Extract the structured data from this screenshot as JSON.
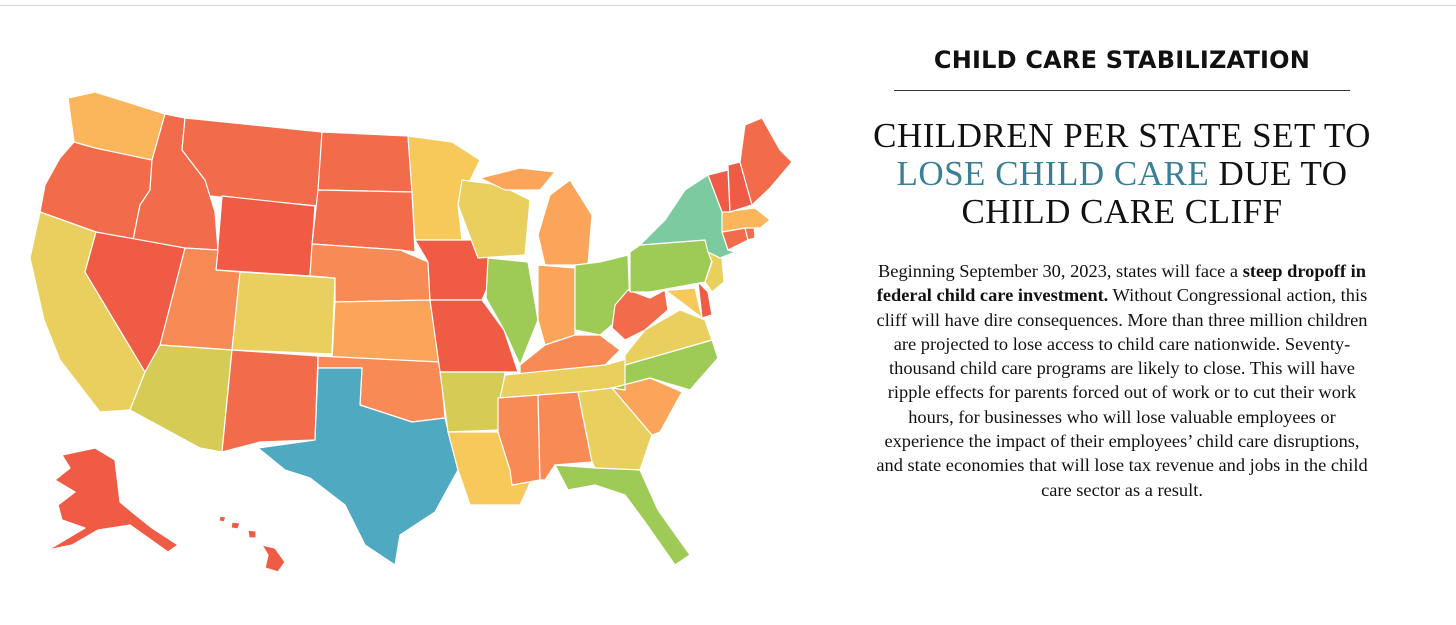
{
  "header": {
    "section_title": "CHILD CARE STABILIZATION",
    "headline_part1": "CHILDREN PER STATE SET TO",
    "headline_accent": "LOSE CHILD CARE",
    "headline_part2": "DUE TO CHILD CARE CLIFF"
  },
  "body": {
    "text_1": "Beginning September 30, 2023, states will face a ",
    "text_bold": "steep dropoff in federal child care investment.",
    "text_2": " Without Congressional action, this cliff will have dire consequences. More than three million children are projected to lose access to child care nationwide. Seventy-thousand child care programs are likely to close. This will have ripple effects for parents forced out of work or to cut their work hours, for businesses who will lose valuable employees or experience the impact of their employees’ child care disruptions, and state economies that will lose tax revenue and jobs in the child care sector as a result."
  },
  "colors": {
    "accent": "#3a7f96",
    "red": "#ef5b45",
    "red_orange": "#f26b4a",
    "orange": "#f88b55",
    "light_orange": "#fba55a",
    "yellow_orange": "#fbbd5b",
    "yellow": "#f7c95b",
    "khaki": "#e9cf5d",
    "olive": "#d6cc55",
    "yellow_green": "#b7cc55",
    "green": "#9dcb55",
    "teal_green": "#7ccba0",
    "blue": "#4fa9c1"
  },
  "map": {
    "states": [
      {
        "abbr": "WA",
        "color": "#fbb55a"
      },
      {
        "abbr": "OR",
        "color": "#f26b4a"
      },
      {
        "abbr": "CA",
        "color": "#e9cf5d"
      },
      {
        "abbr": "ID",
        "color": "#f26b4a"
      },
      {
        "abbr": "NV",
        "color": "#ef5b45"
      },
      {
        "abbr": "MT",
        "color": "#f26b4a"
      },
      {
        "abbr": "WY",
        "color": "#ef5b45"
      },
      {
        "abbr": "UT",
        "color": "#f88b55"
      },
      {
        "abbr": "AZ",
        "color": "#d6cc55"
      },
      {
        "abbr": "CO",
        "color": "#e9cf5d"
      },
      {
        "abbr": "NM",
        "color": "#f26b4a"
      },
      {
        "abbr": "ND",
        "color": "#f26b4a"
      },
      {
        "abbr": "SD",
        "color": "#f26b4a"
      },
      {
        "abbr": "NE",
        "color": "#f88b55"
      },
      {
        "abbr": "KS",
        "color": "#fba55a"
      },
      {
        "abbr": "OK",
        "color": "#f88b55"
      },
      {
        "abbr": "TX",
        "color": "#4fa9c1"
      },
      {
        "abbr": "MN",
        "color": "#f7c95b"
      },
      {
        "abbr": "IA",
        "color": "#ef5b45"
      },
      {
        "abbr": "MO",
        "color": "#ef5b45"
      },
      {
        "abbr": "AR",
        "color": "#d6cc55"
      },
      {
        "abbr": "LA",
        "color": "#f7c95b"
      },
      {
        "abbr": "WI",
        "color": "#e9cf5d"
      },
      {
        "abbr": "IL",
        "color": "#9dcb55"
      },
      {
        "abbr": "MI",
        "color": "#fba55a"
      },
      {
        "abbr": "IN",
        "color": "#fba55a"
      },
      {
        "abbr": "OH",
        "color": "#9dcb55"
      },
      {
        "abbr": "KY",
        "color": "#f88b55"
      },
      {
        "abbr": "TN",
        "color": "#e9cf5d"
      },
      {
        "abbr": "MS",
        "color": "#f88b55"
      },
      {
        "abbr": "AL",
        "color": "#f88b55"
      },
      {
        "abbr": "GA",
        "color": "#e9cf5d"
      },
      {
        "abbr": "FL",
        "color": "#9dcb55"
      },
      {
        "abbr": "SC",
        "color": "#fba55a"
      },
      {
        "abbr": "NC",
        "color": "#9dcb55"
      },
      {
        "abbr": "VA",
        "color": "#e9cf5d"
      },
      {
        "abbr": "WV",
        "color": "#f26b4a"
      },
      {
        "abbr": "PA",
        "color": "#9dcb55"
      },
      {
        "abbr": "NY",
        "color": "#7ccba0"
      },
      {
        "abbr": "NJ",
        "color": "#e9cf5d"
      },
      {
        "abbr": "DE",
        "color": "#ef5b45"
      },
      {
        "abbr": "MD",
        "color": "#f7c95b"
      },
      {
        "abbr": "CT",
        "color": "#f26b4a"
      },
      {
        "abbr": "RI",
        "color": "#f26b4a"
      },
      {
        "abbr": "MA",
        "color": "#fbb55a"
      },
      {
        "abbr": "VT",
        "color": "#ef5b45"
      },
      {
        "abbr": "NH",
        "color": "#ef5b45"
      },
      {
        "abbr": "ME",
        "color": "#f26b4a"
      },
      {
        "abbr": "AK",
        "color": "#ef5b45"
      },
      {
        "abbr": "HI",
        "color": "#ef5b45"
      }
    ]
  }
}
